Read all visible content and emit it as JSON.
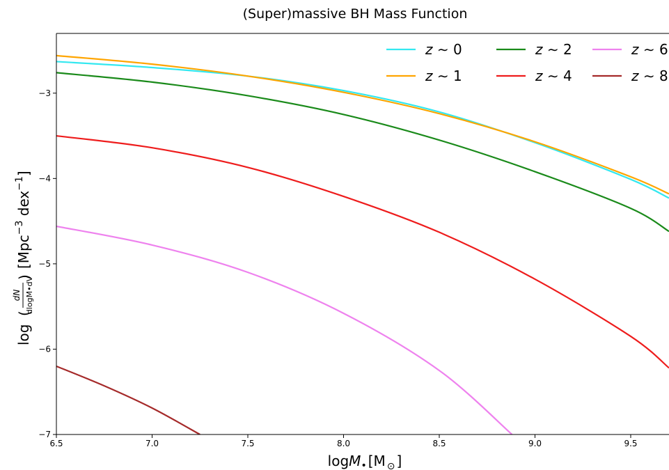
{
  "chart_data": {
    "type": "line",
    "title": "(Super)massive BH Mass Function",
    "xlabel": {
      "pre": "log",
      "var": "M",
      "sub": "•",
      "unit": "[M",
      "unit_sub": "⊙",
      "unit_close": "]"
    },
    "ylabel": {
      "pre": "log",
      "num": "dN",
      "den": "dlogM•dV",
      "unit": "[Mpc",
      "exp1": "−3",
      "mid": " dex",
      "exp2": "−1",
      "close": "]"
    },
    "xlim": [
      6.5,
      9.7
    ],
    "ylim": [
      -7.0,
      -2.3
    ],
    "xticks": [
      6.5,
      7.0,
      7.5,
      8.0,
      8.5,
      9.0,
      9.5
    ],
    "xtick_labels": [
      "6.5",
      "7.0",
      "7.5",
      "8.0",
      "8.5",
      "9.0",
      "9.5"
    ],
    "yticks": [
      -3,
      -4,
      -5,
      -6,
      -7
    ],
    "ytick_labels": [
      "−3",
      "−4",
      "−5",
      "−6",
      "−7"
    ],
    "grid": false,
    "legend": {
      "placement": "top-right",
      "columns": 3
    },
    "series": [
      {
        "name": "z ∼ 0",
        "color": "#33e8f0",
        "x": [
          6.5,
          7.0,
          7.5,
          8.0,
          8.5,
          9.0,
          9.5,
          9.7
        ],
        "y": [
          -2.63,
          -2.7,
          -2.8,
          -2.97,
          -3.22,
          -3.58,
          -4.01,
          -4.23
        ]
      },
      {
        "name": "z ∼ 1",
        "color": "#ffa500",
        "x": [
          6.5,
          7.0,
          7.5,
          8.0,
          8.5,
          9.0,
          9.5,
          9.7
        ],
        "y": [
          -2.56,
          -2.66,
          -2.8,
          -2.99,
          -3.24,
          -3.57,
          -3.98,
          -4.18
        ]
      },
      {
        "name": "z ∼ 2",
        "color": "#1a8a1a",
        "x": [
          6.5,
          7.0,
          7.5,
          8.0,
          8.5,
          9.0,
          9.5,
          9.7
        ],
        "y": [
          -2.76,
          -2.87,
          -3.03,
          -3.25,
          -3.55,
          -3.92,
          -4.35,
          -4.62
        ]
      },
      {
        "name": "z ∼ 4",
        "color": "#ee1c1c",
        "x": [
          6.5,
          7.0,
          7.5,
          8.0,
          8.5,
          9.0,
          9.5,
          9.7
        ],
        "y": [
          -3.5,
          -3.64,
          -3.87,
          -4.21,
          -4.63,
          -5.18,
          -5.85,
          -6.22
        ]
      },
      {
        "name": "z ∼ 6",
        "color": "#ee82ee",
        "x": [
          6.5,
          7.0,
          7.5,
          8.0,
          8.5,
          8.88
        ],
        "y": [
          -4.56,
          -4.78,
          -5.1,
          -5.58,
          -6.25,
          -7.0
        ]
      },
      {
        "name": "z ∼ 8",
        "color": "#a52a2a",
        "x": [
          6.5,
          6.75,
          7.0,
          7.25
        ],
        "y": [
          -6.2,
          -6.43,
          -6.69,
          -7.0
        ]
      }
    ]
  }
}
